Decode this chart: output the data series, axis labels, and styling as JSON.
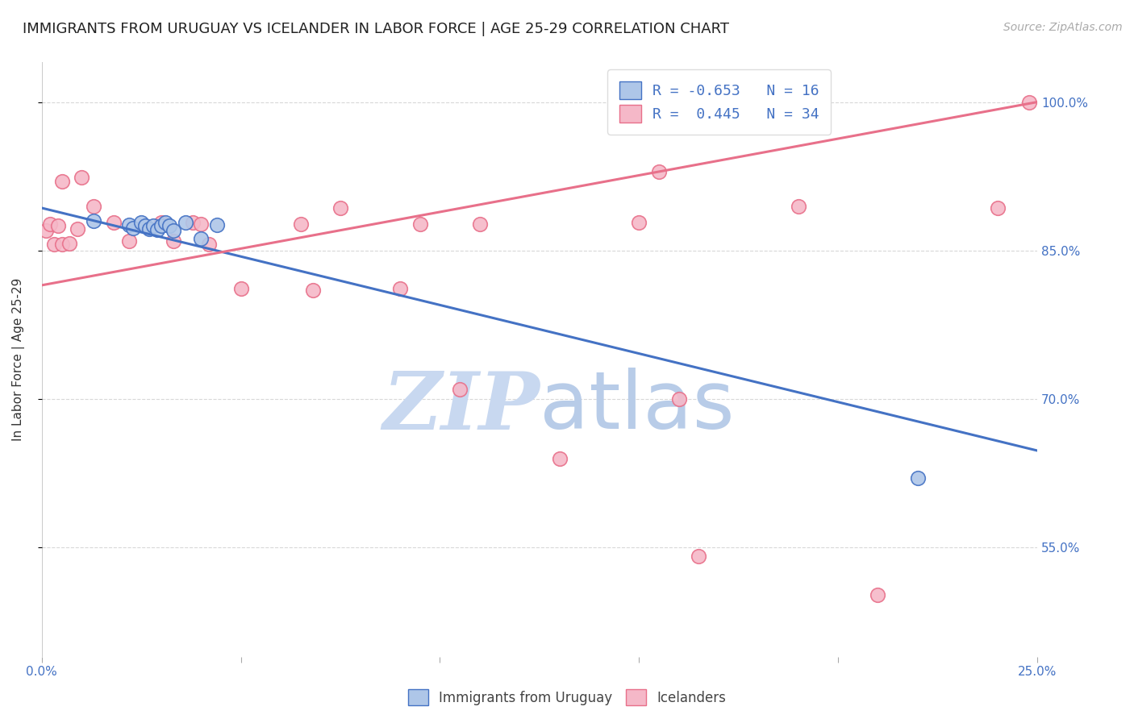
{
  "title": "IMMIGRANTS FROM URUGUAY VS ICELANDER IN LABOR FORCE | AGE 25-29 CORRELATION CHART",
  "source": "Source: ZipAtlas.com",
  "ylabel": "In Labor Force | Age 25-29",
  "xlim": [
    0.0,
    0.25
  ],
  "ylim": [
    0.44,
    1.04
  ],
  "yticks": [
    0.55,
    0.7,
    0.85,
    1.0
  ],
  "ytick_labels": [
    "55.0%",
    "70.0%",
    "85.0%",
    "100.0%"
  ],
  "xticks": [
    0.0,
    0.05,
    0.1,
    0.15,
    0.2,
    0.25
  ],
  "xtick_labels": [
    "0.0%",
    "",
    "",
    "",
    "",
    "25.0%"
  ],
  "blue_r": -0.653,
  "blue_n": 16,
  "pink_r": 0.445,
  "pink_n": 34,
  "blue_color": "#aec6e8",
  "pink_color": "#f5b8c8",
  "blue_line_color": "#4472c4",
  "pink_line_color": "#e8708a",
  "legend_label_blue": "Immigrants from Uruguay",
  "legend_label_pink": "Icelanders",
  "blue_scatter_x": [
    0.013,
    0.022,
    0.023,
    0.025,
    0.026,
    0.027,
    0.028,
    0.029,
    0.03,
    0.031,
    0.032,
    0.033,
    0.036,
    0.04,
    0.044,
    0.22
  ],
  "blue_scatter_y": [
    0.88,
    0.876,
    0.873,
    0.878,
    0.875,
    0.872,
    0.875,
    0.871,
    0.875,
    0.878,
    0.875,
    0.87,
    0.878,
    0.862,
    0.876,
    0.62
  ],
  "pink_scatter_x": [
    0.001,
    0.002,
    0.003,
    0.004,
    0.005,
    0.005,
    0.007,
    0.009,
    0.01,
    0.013,
    0.018,
    0.022,
    0.03,
    0.033,
    0.038,
    0.04,
    0.042,
    0.05,
    0.065,
    0.068,
    0.075,
    0.09,
    0.095,
    0.105,
    0.11,
    0.13,
    0.15,
    0.155,
    0.16,
    0.165,
    0.19,
    0.21,
    0.24,
    0.248
  ],
  "pink_scatter_y": [
    0.87,
    0.877,
    0.856,
    0.875,
    0.856,
    0.92,
    0.857,
    0.872,
    0.924,
    0.895,
    0.878,
    0.86,
    0.878,
    0.86,
    0.878,
    0.877,
    0.856,
    0.812,
    0.877,
    0.81,
    0.893,
    0.812,
    0.877,
    0.71,
    0.877,
    0.64,
    0.878,
    0.93,
    0.7,
    0.541,
    0.895,
    0.502,
    0.893,
    1.0
  ],
  "blue_trendline_x": [
    0.0,
    0.25
  ],
  "blue_trendline_y": [
    0.893,
    0.648
  ],
  "pink_trendline_x": [
    0.0,
    0.25
  ],
  "pink_trendline_y": [
    0.815,
    1.0
  ],
  "grid_color": "#d8d8d8",
  "background_color": "#ffffff",
  "title_fontsize": 13,
  "axis_fontsize": 11,
  "tick_fontsize": 11,
  "source_fontsize": 10
}
